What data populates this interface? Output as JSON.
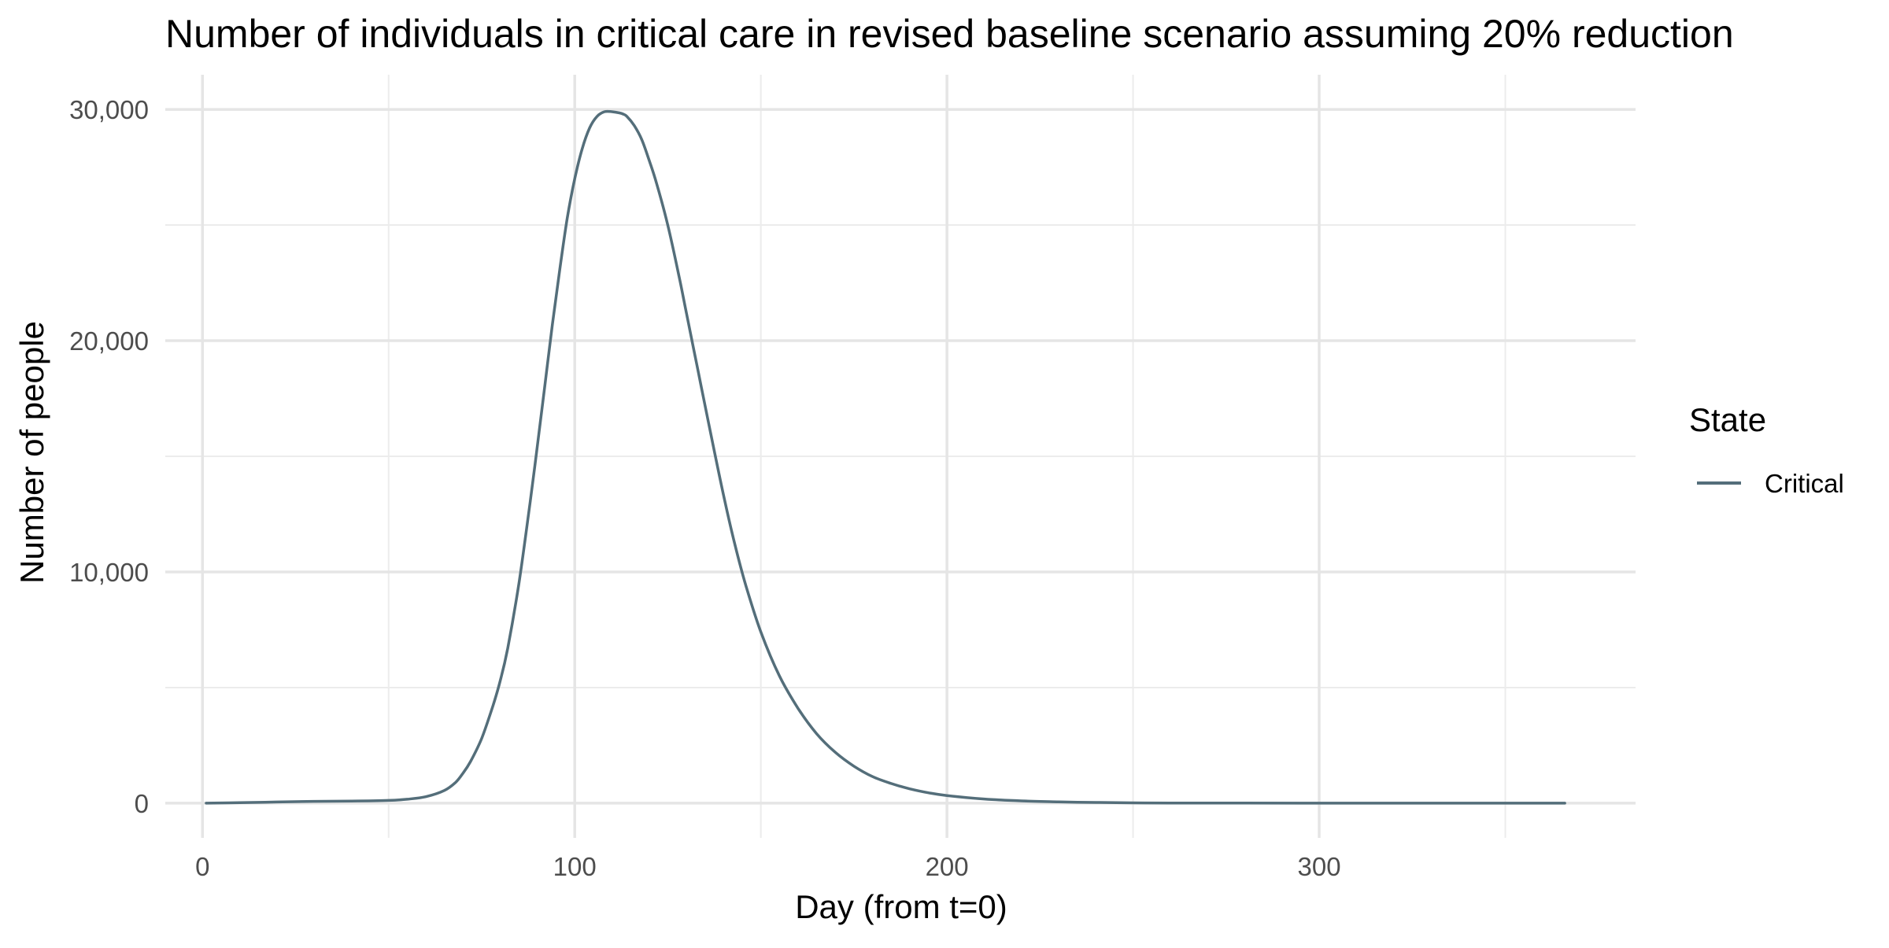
{
  "chart_data": {
    "type": "line",
    "title": "Number of individuals in critical care in revised baseline scenario assuming 20% reduction",
    "xlabel": "Day (from t=0)",
    "ylabel": "Number of people",
    "xlim": [
      -10,
      385
    ],
    "ylim": [
      -1500,
      31500
    ],
    "x_ticks": [
      0,
      100,
      200,
      300
    ],
    "x_tick_labels": [
      "0",
      "100",
      "200",
      "300"
    ],
    "x_minor_ticks": [
      50,
      150,
      250,
      350
    ],
    "y_ticks": [
      0,
      10000,
      20000,
      30000
    ],
    "y_tick_labels": [
      "0",
      "10,000",
      "20,000",
      "30,000"
    ],
    "y_minor_ticks": [
      5000,
      15000,
      25000
    ],
    "grid": true,
    "legend": {
      "title": "State",
      "position": "right",
      "entries": [
        {
          "label": "Critical",
          "color": "#546e7a"
        }
      ]
    },
    "series": [
      {
        "name": "Critical",
        "color": "#546e7a",
        "x": [
          1,
          10,
          20,
          30,
          40,
          50,
          55,
          60,
          65,
          68,
          70,
          72,
          75,
          78,
          80,
          82,
          85,
          88,
          90,
          92,
          94,
          96,
          98,
          100,
          102,
          104,
          106,
          108,
          110,
          112,
          113,
          114,
          116,
          118,
          120,
          122,
          125,
          128,
          130,
          133,
          136,
          140,
          143,
          146,
          150,
          155,
          160,
          165,
          170,
          175,
          180,
          185,
          190,
          195,
          200,
          210,
          220,
          230,
          240,
          250,
          260,
          280,
          300,
          320,
          340,
          366
        ],
        "y": [
          0,
          20,
          50,
          80,
          90,
          120,
          170,
          280,
          550,
          900,
          1300,
          1800,
          2800,
          4200,
          5300,
          6700,
          9500,
          13000,
          15500,
          18100,
          20700,
          23100,
          25300,
          27000,
          28300,
          29200,
          29700,
          29900,
          29900,
          29850,
          29800,
          29700,
          29300,
          28700,
          27800,
          26800,
          25000,
          22800,
          21200,
          18800,
          16400,
          13300,
          11200,
          9400,
          7400,
          5500,
          4100,
          3000,
          2200,
          1600,
          1150,
          850,
          620,
          450,
          330,
          180,
          100,
          55,
          30,
          15,
          8,
          3,
          1,
          0,
          0,
          0
        ]
      }
    ]
  }
}
